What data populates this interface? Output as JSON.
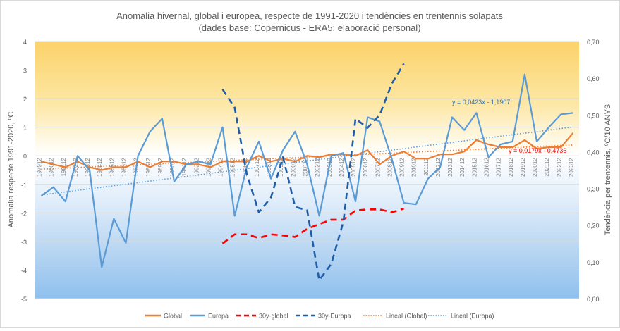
{
  "chart_data": {
    "type": "line",
    "title_line1": "Anomalia hivernal, global i europea, respecte de 1991-2020 i tendències en trentennis solapats",
    "title_line2": "(dades base: Copernicus - ERA5; elaboració personal)",
    "ylabel": "Anomalia respecte 1991-2020, ºC",
    "y2label": "Tendència per trentennis, ºC/10 ANYS",
    "ylim": [
      -5,
      4
    ],
    "y2lim": [
      0,
      0.7
    ],
    "yticks": [
      "-5",
      "-4",
      "-3",
      "-2",
      "-1",
      "0",
      "1",
      "2",
      "3",
      "4"
    ],
    "y2ticks": [
      "0,00",
      "0,10",
      "0,20",
      "0,30",
      "0,40",
      "0,50",
      "0,60",
      "0,70"
    ],
    "grid": true,
    "background": "vertical gradient: warm yellow above zero, light blue below zero",
    "x_labels": [
      "197912",
      "198012",
      "198112",
      "198212",
      "198312",
      "198412",
      "198512",
      "198612",
      "198712",
      "198812",
      "198912",
      "199012",
      "199112",
      "199212",
      "199312",
      "199412",
      "199512",
      "199612",
      "199712",
      "199812",
      "199912",
      "200012",
      "200112",
      "200212",
      "200312",
      "200412",
      "200512",
      "200612",
      "200712",
      "200812",
      "200912",
      "201012",
      "201112",
      "201212",
      "201312",
      "201412",
      "201512",
      "201612",
      "201712",
      "201812",
      "201912",
      "202012",
      "202112",
      "202212",
      "202312"
    ],
    "series": [
      {
        "name": "Global",
        "axis": "left",
        "style": "solid",
        "color": "#ed7d31",
        "values": [
          -0.2,
          -0.3,
          -0.4,
          -0.2,
          -0.4,
          -0.5,
          -0.4,
          -0.4,
          -0.2,
          -0.4,
          -0.2,
          -0.2,
          -0.3,
          -0.3,
          -0.4,
          -0.2,
          -0.2,
          -0.2,
          0.0,
          -0.2,
          -0.1,
          -0.2,
          0.0,
          -0.05,
          0.05,
          0.05,
          0.0,
          0.2,
          -0.3,
          0.0,
          0.15,
          -0.1,
          -0.1,
          0.05,
          0.05,
          0.15,
          0.55,
          0.4,
          0.3,
          0.3,
          0.55,
          0.25,
          0.3,
          0.3,
          0.8
        ]
      },
      {
        "name": "Europa",
        "axis": "left",
        "style": "solid",
        "color": "#5b9bd5",
        "values": [
          -1.4,
          -1.1,
          -1.6,
          0.0,
          -0.5,
          -3.9,
          -2.2,
          -3.05,
          0.0,
          0.85,
          1.3,
          -0.9,
          -0.3,
          -0.2,
          -0.3,
          1.0,
          -2.1,
          -0.4,
          0.5,
          -0.8,
          0.2,
          0.85,
          -0.3,
          -2.1,
          0.0,
          0.1,
          -1.6,
          1.35,
          1.2,
          -0.1,
          -1.65,
          -1.7,
          -0.8,
          -0.4,
          1.35,
          0.9,
          1.5,
          -0.05,
          0.4,
          0.5,
          2.85,
          0.5,
          1.0,
          1.45,
          1.5
        ]
      },
      {
        "name": "30y-global",
        "axis": "right",
        "style": "dashed",
        "color": "#ff0000",
        "values": [
          null,
          null,
          null,
          null,
          null,
          null,
          null,
          null,
          null,
          null,
          null,
          null,
          null,
          null,
          null,
          0.15,
          0.175,
          0.175,
          0.165,
          0.175,
          0.172,
          0.168,
          0.19,
          0.203,
          0.215,
          0.215,
          0.24,
          0.243,
          0.243,
          0.235,
          0.245
        ]
      },
      {
        "name": "30y-Europa",
        "axis": "right",
        "style": "dashed",
        "color": "#1f5da8",
        "values": [
          null,
          null,
          null,
          null,
          null,
          null,
          null,
          null,
          null,
          null,
          null,
          null,
          null,
          null,
          null,
          0.57,
          0.52,
          0.34,
          0.235,
          0.275,
          0.385,
          0.25,
          0.24,
          0.05,
          0.095,
          0.21,
          0.49,
          0.465,
          0.5,
          0.585,
          0.64
        ]
      },
      {
        "name": "Lineal  (Global)",
        "axis": "left",
        "style": "dotted",
        "color": "#ed7d31",
        "trend": "y = 0,0179x - 0,4736"
      },
      {
        "name": "Lineal  (Europa)",
        "axis": "left",
        "style": "dotted",
        "color": "#5b9bd5",
        "trend": "y = 0,0423x - 1,1907"
      }
    ],
    "annotations": {
      "global_eq": "y = 0,0179x - 0,4736",
      "europa_eq": "y = 0,0423x - 1,1907"
    },
    "legend_position": "bottom"
  },
  "colors": {
    "global": "#ed7d31",
    "europa": "#5b9bd5",
    "global30": "#ff0000",
    "europa30": "#1f5da8",
    "eq_global": "#ff0000",
    "eq_europa": "#2e75b6"
  }
}
